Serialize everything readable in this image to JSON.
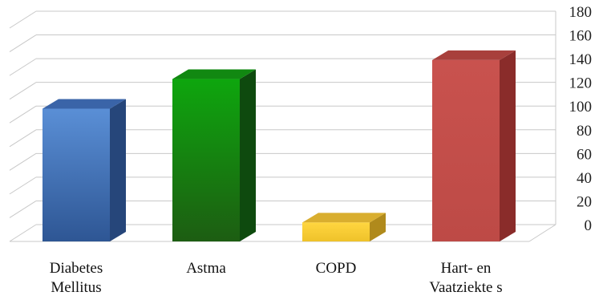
{
  "chart_data": {
    "type": "bar",
    "categories": [
      [
        "Diabetes",
        "Mellitus"
      ],
      [
        "Astma"
      ],
      [
        "COPD"
      ],
      [
        "Hart- en",
        "Vaatziekte s"
      ]
    ],
    "values": [
      112,
      137,
      16,
      153
    ],
    "colors": {
      "bars": [
        {
          "top": "#6b99d8",
          "front_light": "#5a8fd6",
          "front_dark": "#2e5694",
          "side": "#26467a",
          "cap": "#3a64a8"
        },
        {
          "top": "#1f9e1f",
          "front_light": "#0ea60e",
          "front_dark": "#1d5d12",
          "side": "#0e4a0e",
          "cap": "#118811"
        },
        {
          "top": "#f5d35a",
          "front_light": "#ffd640",
          "front_dark": "#efc22a",
          "side": "#b08a1c",
          "cap": "#d9ae2f"
        },
        {
          "top": "#c75656",
          "front_light": "#c9524e",
          "front_dark": "#bd4a46",
          "side": "#8a2c2a",
          "cap": "#a8403c"
        }
      ],
      "grid": "#c8c8c8"
    },
    "ylim": [
      0,
      180
    ],
    "yticks": [
      0,
      20,
      40,
      60,
      80,
      100,
      120,
      140,
      160,
      180
    ],
    "grid": true,
    "title": "",
    "xlabel": "",
    "ylabel": ""
  }
}
